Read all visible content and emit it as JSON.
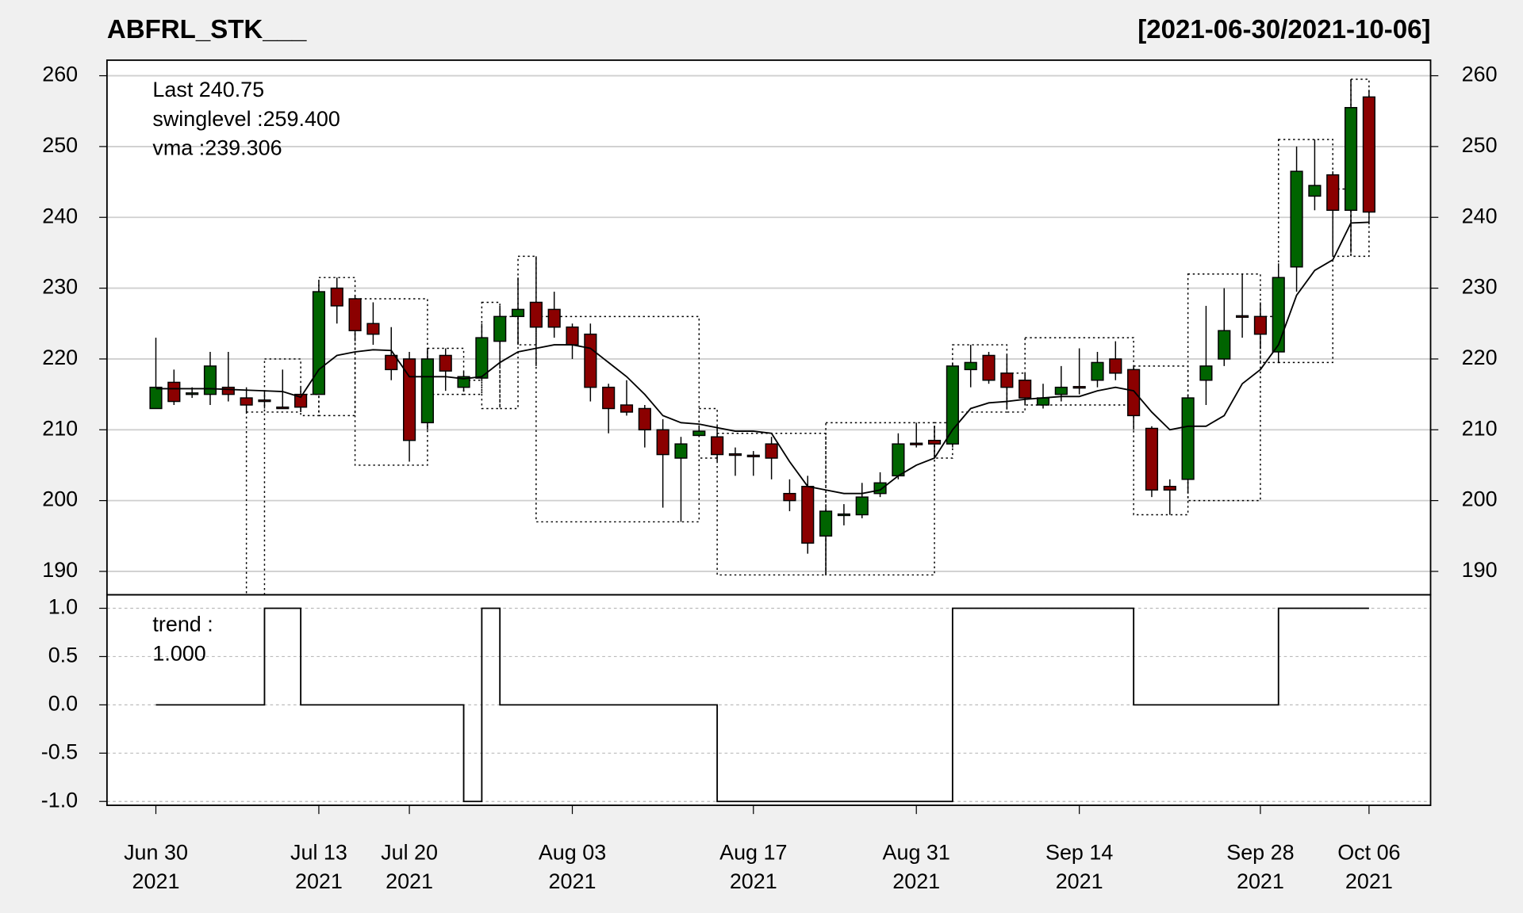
{
  "chart_data": {
    "type": "candlestick",
    "title": "ABFRL_STK___",
    "date_range": "[2021-06-30/2021-10-06]",
    "categories": [
      "Jun 30\n2021",
      null,
      null,
      null,
      null,
      null,
      null,
      null,
      null,
      "Jul 13\n2021",
      null,
      null,
      null,
      null,
      "Jul 20\n2021",
      null,
      null,
      null,
      null,
      null,
      null,
      null,
      null,
      "Aug 03\n2021",
      null,
      null,
      null,
      null,
      null,
      null,
      null,
      null,
      null,
      "Aug 17\n2021",
      null,
      null,
      null,
      null,
      null,
      null,
      null,
      null,
      "Aug 31\n2021",
      null,
      null,
      null,
      null,
      null,
      null,
      null,
      null,
      "Sep 14\n2021",
      null,
      null,
      null,
      null,
      null,
      null,
      null,
      null,
      null,
      "Sep 28\n2021",
      null,
      null,
      null,
      null,
      null,
      "Oct 06\n2021"
    ],
    "open": [
      213,
      216.7,
      215,
      215,
      216,
      214.5,
      214.2,
      213.2,
      215,
      215,
      230,
      228.5,
      225,
      220.5,
      220,
      211,
      220.5,
      216,
      217.3,
      222.5,
      226,
      228,
      227,
      224.5,
      223.5,
      216,
      213.5,
      213,
      210,
      206,
      209.2,
      209,
      206.6,
      206.4,
      208,
      201,
      202,
      195,
      197.9,
      198,
      201,
      203.5,
      208.1,
      208.5,
      208,
      218.5,
      220.5,
      218,
      217,
      213.5,
      215,
      216.1,
      217,
      220,
      218.5,
      210.2,
      202,
      203,
      217,
      220,
      226.1,
      226,
      221,
      233,
      243,
      246,
      241,
      257
    ],
    "high": [
      223,
      218.5,
      216,
      221,
      221,
      216,
      215.5,
      218.5,
      216,
      231,
      231.5,
      229,
      228,
      224.5,
      221,
      221.5,
      221.5,
      218.2,
      225,
      227.5,
      231.5,
      234.5,
      229.5,
      225,
      225,
      216.5,
      217,
      213.5,
      211.5,
      209,
      210.5,
      210.5,
      207.5,
      207,
      209,
      203,
      203.5,
      199,
      199.5,
      202.5,
      204,
      209.5,
      211,
      210.5,
      219.5,
      222,
      221,
      220.5,
      218,
      216.5,
      219,
      221.5,
      221,
      222.5,
      219,
      210.5,
      203,
      215,
      227.5,
      230,
      232,
      228,
      233.5,
      250,
      251,
      246.5,
      259.5,
      258
    ],
    "low": [
      213,
      213.5,
      214.5,
      213.5,
      214,
      212.5,
      213,
      213,
      212.5,
      215,
      225,
      222.5,
      222,
      217,
      205.5,
      210,
      215.5,
      215.5,
      217,
      219,
      222,
      219,
      223,
      220,
      214,
      209.5,
      212,
      207.5,
      199,
      197,
      209,
      205.5,
      203.5,
      203.5,
      203,
      198.5,
      192.5,
      189.5,
      196.5,
      197.5,
      200.5,
      203,
      207.5,
      206,
      207.5,
      216,
      216.5,
      213,
      213.5,
      213,
      214,
      215,
      216,
      217,
      210,
      200.5,
      198,
      201,
      213.5,
      219,
      223,
      221.5,
      219.5,
      229.5,
      241,
      234.5,
      235,
      239
    ],
    "close": [
      216,
      214,
      215.2,
      219,
      215,
      213.5,
      214,
      213,
      213.2,
      229.5,
      227.5,
      224,
      223.5,
      218.5,
      208.5,
      220,
      218.3,
      217.5,
      223,
      226,
      227,
      224.5,
      224.5,
      222,
      216,
      213,
      212.5,
      210,
      206.5,
      208,
      209.8,
      206.5,
      206.4,
      206.2,
      206,
      200,
      194,
      198.5,
      198.1,
      200.5,
      202.5,
      208,
      208,
      208,
      219,
      219.5,
      217,
      216,
      214.5,
      214.5,
      216,
      216,
      219.5,
      218,
      212,
      201.5,
      201.5,
      214.5,
      219,
      224,
      226,
      223.5,
      231.5,
      246.5,
      244.5,
      241,
      255.5,
      240.75
    ],
    "up_color": "#006400",
    "down_color": "#8b0000",
    "xlim": [
      -2.7,
      70.4
    ],
    "ylim": [
      186.7,
      262.2
    ],
    "yticks": [
      190,
      200,
      210,
      220,
      230,
      240,
      250,
      260
    ],
    "grid": true,
    "annotations": {
      "last": "Last 240.75",
      "swinglevel": "swinglevel :259.400",
      "vma": "vma :239.306"
    },
    "last_color": "#8b0000",
    "vma": {
      "color": "#000000",
      "values": [
        215.8,
        215.8,
        215.8,
        215.8,
        215.7,
        215.6,
        215.5,
        215.4,
        214.6,
        218.5,
        220.5,
        221,
        221.3,
        221.2,
        217.5,
        217.5,
        217.5,
        217.2,
        217.5,
        219.5,
        221,
        221.5,
        222,
        222,
        221.5,
        219.5,
        217.5,
        215,
        212,
        211,
        210.8,
        210.3,
        209.8,
        209.8,
        209.5,
        205.5,
        202,
        201.5,
        201,
        201,
        201.5,
        203.5,
        205,
        206,
        210,
        213,
        213.8,
        214,
        214.3,
        214.5,
        214.7,
        214.7,
        215.5,
        216,
        215.5,
        212.5,
        210,
        210.5,
        210.5,
        212,
        216.5,
        218.5,
        222,
        229,
        232.5,
        234,
        239.2,
        239.306
      ]
    },
    "swing_boxes": [
      [
        5,
        6,
        180,
        212.5
      ],
      [
        6,
        8,
        212.5,
        220
      ],
      [
        8,
        9,
        212,
        215
      ],
      [
        9,
        11,
        212,
        231.5
      ],
      [
        11,
        15,
        205,
        228.5
      ],
      [
        15,
        17,
        215,
        221.5
      ],
      [
        17,
        18,
        215,
        217
      ],
      [
        18,
        19,
        213,
        228
      ],
      [
        19,
        20,
        213,
        226
      ],
      [
        20,
        21,
        222,
        234.5
      ],
      [
        21,
        30,
        197,
        226
      ],
      [
        30,
        31,
        206,
        213
      ],
      [
        31,
        37,
        189.5,
        209.5
      ],
      [
        37,
        43,
        189.5,
        211
      ],
      [
        43,
        44,
        206,
        211
      ],
      [
        44,
        47,
        212.5,
        222
      ],
      [
        47,
        48,
        212.5,
        218
      ],
      [
        48,
        54,
        213.5,
        223
      ],
      [
        54,
        57,
        198,
        219
      ],
      [
        57,
        61,
        200,
        232
      ],
      [
        61,
        62,
        219.5,
        226
      ],
      [
        62,
        65,
        219.5,
        251
      ],
      [
        65,
        66,
        234.5,
        244
      ],
      [
        66,
        67,
        234.5,
        259.5
      ]
    ],
    "trend_panel": {
      "type": "line",
      "step": true,
      "label": "trend :",
      "last": "1.000",
      "color": "#000000",
      "values": [
        0,
        0,
        0,
        0,
        0,
        0,
        1,
        1,
        0,
        0,
        0,
        0,
        0,
        0,
        0,
        0,
        0,
        -1,
        1,
        0,
        0,
        0,
        0,
        0,
        0,
        0,
        0,
        0,
        0,
        0,
        0,
        -1,
        -1,
        -1,
        -1,
        -1,
        -1,
        -1,
        -1,
        -1,
        -1,
        -1,
        -1,
        -1,
        1,
        1,
        1,
        1,
        1,
        1,
        1,
        1,
        1,
        1,
        0,
        0,
        0,
        0,
        0,
        0,
        0,
        0,
        1,
        1,
        1,
        1,
        1,
        1
      ],
      "ylim": [
        -1.04,
        1.14
      ],
      "yticks": [
        {
          "value": 1,
          "label": "1.0"
        },
        {
          "value": 0.5,
          "label": "0.5"
        },
        {
          "value": 0,
          "label": "0.0"
        },
        {
          "value": -0.5,
          "label": "-0.5"
        },
        {
          "value": -1,
          "label": "-1.0"
        }
      ],
      "grid": true
    }
  }
}
